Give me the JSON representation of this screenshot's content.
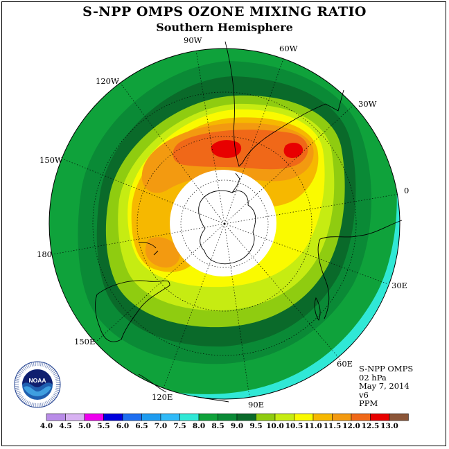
{
  "title": "S-NPP OMPS OZONE MIXING RATIO",
  "subtitle": "Southern Hemisphere",
  "longitude_labels": {
    "lon_90w": "90W",
    "lon_60w": "60W",
    "lon_30w": "30W",
    "lon_120w": "120W",
    "lon_150w": "150W",
    "lon_0": "0",
    "lon_180": "180",
    "lon_30e": "30E",
    "lon_150e": "150E",
    "lon_60e": "60E",
    "lon_120e": "120E",
    "lon_90e": "90E"
  },
  "info": {
    "product": "S-NPP OMPS",
    "level": "02 hPa",
    "date": "May 7, 2014",
    "version": "v6",
    "units": "PPM"
  },
  "logo": {
    "text": "NOAA",
    "ring_text": "NATIONAL OCEANIC AND ATMOSPHERIC ADMINISTRATION · U.S. DEPARTMENT OF COMMERCE"
  },
  "colorbar": {
    "ticks": [
      "4.0",
      "4.5",
      "5.0",
      "5.5",
      "6.0",
      "6.5",
      "7.0",
      "7.5",
      "8.0",
      "8.5",
      "9.0",
      "9.5",
      "10.0",
      "10.5",
      "11.0",
      "11.5",
      "12.0",
      "12.5",
      "13.0"
    ],
    "colors": [
      "#b98ce8",
      "#d8b2f2",
      "#ee00ee",
      "#0000dd",
      "#1e6ef0",
      "#1e9cf0",
      "#30baf8",
      "#30e8d6",
      "#0fa23b",
      "#0a8a36",
      "#0a6a2a",
      "#8fcc10",
      "#c6ec12",
      "#fafa00",
      "#f6b800",
      "#f39a10",
      "#f06818",
      "#e80000",
      "#8b5538"
    ]
  },
  "map_colors": {
    "c7_5": "#30e8d6",
    "c8_0": "#0fa23b",
    "c8_5": "#0a8a36",
    "c9_0": "#0a6a2a",
    "c9_5": "#8fcc10",
    "c10_0": "#c6ec12",
    "c10_5": "#fafa00",
    "c11_0": "#f6b800",
    "c11_5": "#f39a10",
    "c12_0": "#f06818",
    "c12_5": "#e80000",
    "polar_night": "#ffffff"
  }
}
